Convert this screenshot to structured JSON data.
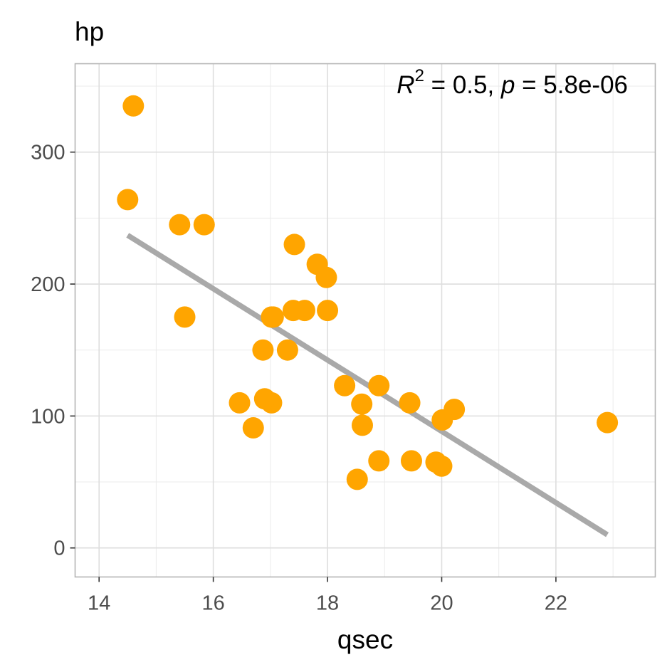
{
  "chart_data": {
    "type": "scatter",
    "title": "hp",
    "xlabel": "qsec",
    "ylabel": "",
    "xlim": [
      13.58,
      23.74
    ],
    "ylim": [
      -22,
      367
    ],
    "x_ticks": [
      "14",
      "16",
      "18",
      "20",
      "22"
    ],
    "y_ticks": [
      "0",
      "100",
      "200",
      "300"
    ],
    "grid": true,
    "point_color": "#FFA500",
    "line_color": "#A9A9A9",
    "annotation": {
      "r_symbol": "R",
      "r_exp": "2",
      "r_text": " = 0.5, ",
      "p_symbol": "p",
      "p_text": " = 5.8e-06"
    },
    "fit_line": {
      "x": [
        14.5,
        22.9
      ],
      "y": [
        237,
        10
      ]
    },
    "points": [
      {
        "x": 16.46,
        "y": 110
      },
      {
        "x": 17.02,
        "y": 110
      },
      {
        "x": 18.61,
        "y": 93
      },
      {
        "x": 19.44,
        "y": 110
      },
      {
        "x": 17.02,
        "y": 175
      },
      {
        "x": 20.22,
        "y": 105
      },
      {
        "x": 15.84,
        "y": 245
      },
      {
        "x": 20.0,
        "y": 62
      },
      {
        "x": 22.9,
        "y": 95
      },
      {
        "x": 18.3,
        "y": 123
      },
      {
        "x": 18.9,
        "y": 123
      },
      {
        "x": 17.4,
        "y": 180
      },
      {
        "x": 17.6,
        "y": 180
      },
      {
        "x": 18.0,
        "y": 180
      },
      {
        "x": 17.98,
        "y": 205
      },
      {
        "x": 17.82,
        "y": 215
      },
      {
        "x": 17.42,
        "y": 230
      },
      {
        "x": 19.47,
        "y": 66
      },
      {
        "x": 18.52,
        "y": 52
      },
      {
        "x": 19.9,
        "y": 65
      },
      {
        "x": 20.01,
        "y": 97
      },
      {
        "x": 16.87,
        "y": 150
      },
      {
        "x": 17.3,
        "y": 150
      },
      {
        "x": 15.41,
        "y": 245
      },
      {
        "x": 17.05,
        "y": 175
      },
      {
        "x": 18.9,
        "y": 66
      },
      {
        "x": 16.7,
        "y": 91
      },
      {
        "x": 16.9,
        "y": 113
      },
      {
        "x": 14.5,
        "y": 264
      },
      {
        "x": 15.5,
        "y": 175
      },
      {
        "x": 14.6,
        "y": 335
      },
      {
        "x": 18.6,
        "y": 109
      }
    ]
  }
}
